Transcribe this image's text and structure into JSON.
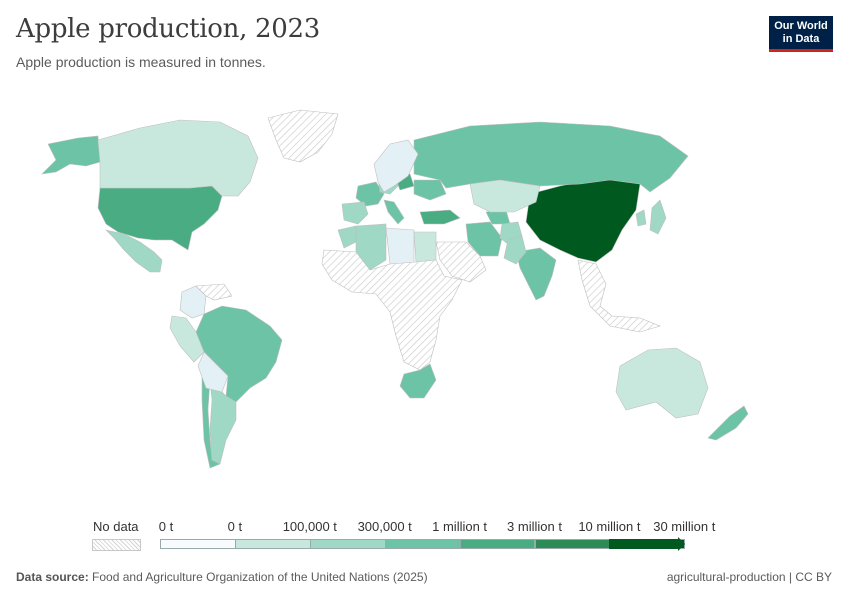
{
  "header": {
    "title": "Apple production, 2023",
    "subtitle": "Apple production is measured in tonnes.",
    "logo_line1": "Our World",
    "logo_line2": "in Data"
  },
  "colors": {
    "nodata": "#e9e9e9",
    "border": "#bfbfbf",
    "bins": [
      "#f7fbfd",
      "#e3f1f6",
      "#c9e8dd",
      "#9fd8c4",
      "#6cc3a6",
      "#4aac82",
      "#2d8c55",
      "#00591e"
    ]
  },
  "legend": {
    "nodata_label": "No data",
    "labels": [
      "0 t",
      "0 t",
      "100,000 t",
      "300,000 t",
      "1 million t",
      "3 million t",
      "10 million t",
      "30 million t"
    ]
  },
  "footer": {
    "source_label": "Data source:",
    "source_text": "Food and Agriculture Organization of the United Nations (2025)",
    "right_text": "agricultural-production | CC BY"
  },
  "chart_data": {
    "type": "choropleth",
    "title": "Apple production, 2023",
    "unit": "tonnes",
    "legend_bins": [
      "0 t",
      "0 t",
      "100,000 t",
      "300,000 t",
      "1 million t",
      "3 million t",
      "10 million t",
      "30 million t"
    ],
    "regions": [
      {
        "name": "China",
        "bin": 7
      },
      {
        "name": "United States",
        "bin": 5
      },
      {
        "name": "Turkey",
        "bin": 5
      },
      {
        "name": "Poland",
        "bin": 5
      },
      {
        "name": "India",
        "bin": 4
      },
      {
        "name": "Iran",
        "bin": 4
      },
      {
        "name": "Russia",
        "bin": 4
      },
      {
        "name": "Brazil",
        "bin": 4
      },
      {
        "name": "Chile",
        "bin": 4
      },
      {
        "name": "South Africa",
        "bin": 4
      },
      {
        "name": "Italy",
        "bin": 4
      },
      {
        "name": "France",
        "bin": 4
      },
      {
        "name": "Ukraine",
        "bin": 4
      },
      {
        "name": "Uzbekistan",
        "bin": 4
      },
      {
        "name": "Alaska",
        "bin": 4
      },
      {
        "name": "New Zealand",
        "bin": 4
      },
      {
        "name": "Mexico",
        "bin": 3
      },
      {
        "name": "Argentina",
        "bin": 3
      },
      {
        "name": "Spain",
        "bin": 3
      },
      {
        "name": "Germany",
        "bin": 3
      },
      {
        "name": "Morocco",
        "bin": 3
      },
      {
        "name": "Algeria",
        "bin": 3
      },
      {
        "name": "Afghanistan",
        "bin": 3
      },
      {
        "name": "Pakistan",
        "bin": 3
      },
      {
        "name": "Canada",
        "bin": 2
      },
      {
        "name": "Australia",
        "bin": 2
      },
      {
        "name": "Kazakhstan",
        "bin": 2
      },
      {
        "name": "Japan",
        "bin": 3
      },
      {
        "name": "Korea",
        "bin": 3
      },
      {
        "name": "Peru",
        "bin": 2
      },
      {
        "name": "Egypt",
        "bin": 2
      },
      {
        "name": "Libya",
        "bin": 1
      },
      {
        "name": "Colombia",
        "bin": 1
      },
      {
        "name": "Bolivia",
        "bin": 1
      },
      {
        "name": "Scandinavia",
        "bin": 1
      },
      {
        "name": "Greenland",
        "bin": -1
      },
      {
        "name": "Sub-Saharan Africa",
        "bin": -1
      },
      {
        "name": "Arabian Peninsula",
        "bin": -1
      },
      {
        "name": "Southeast Asia",
        "bin": -1
      },
      {
        "name": "Venezuela",
        "bin": -1
      }
    ]
  }
}
